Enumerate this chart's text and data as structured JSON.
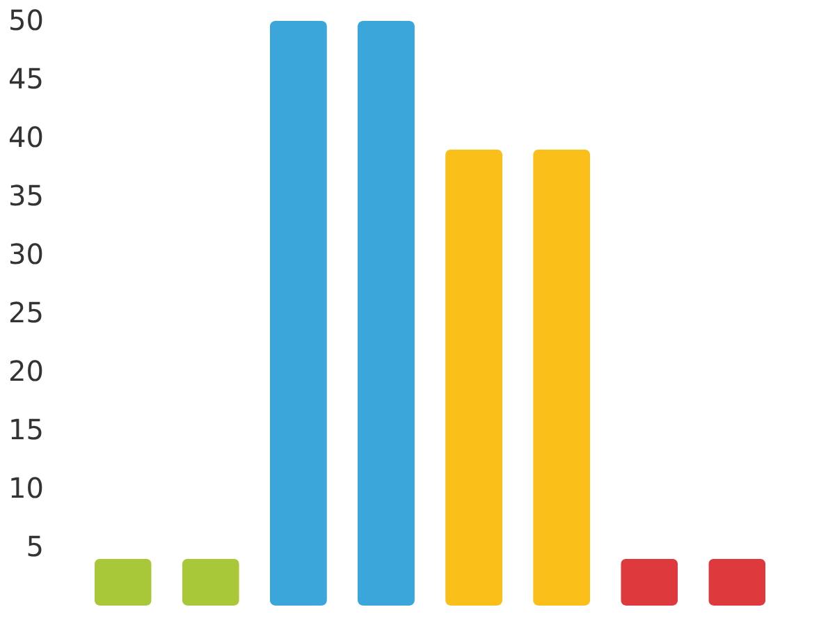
{
  "chart_data": {
    "type": "bar",
    "categories": [
      null,
      null,
      null,
      null,
      null,
      null,
      null,
      null
    ],
    "values": [
      4,
      4,
      50,
      50,
      39,
      39,
      4,
      4
    ],
    "colors": [
      "#a8c83a",
      "#a8c83a",
      "#3aa6da",
      "#3aa6da",
      "#fbbf1a",
      "#fbbf1a",
      "#de3a3e",
      "#de3a3e"
    ],
    "ylim": [
      0,
      50
    ],
    "yticks": [
      5,
      10,
      15,
      20,
      25,
      30,
      35,
      40,
      45,
      50
    ],
    "tick_labels": "y",
    "grid": false
  }
}
